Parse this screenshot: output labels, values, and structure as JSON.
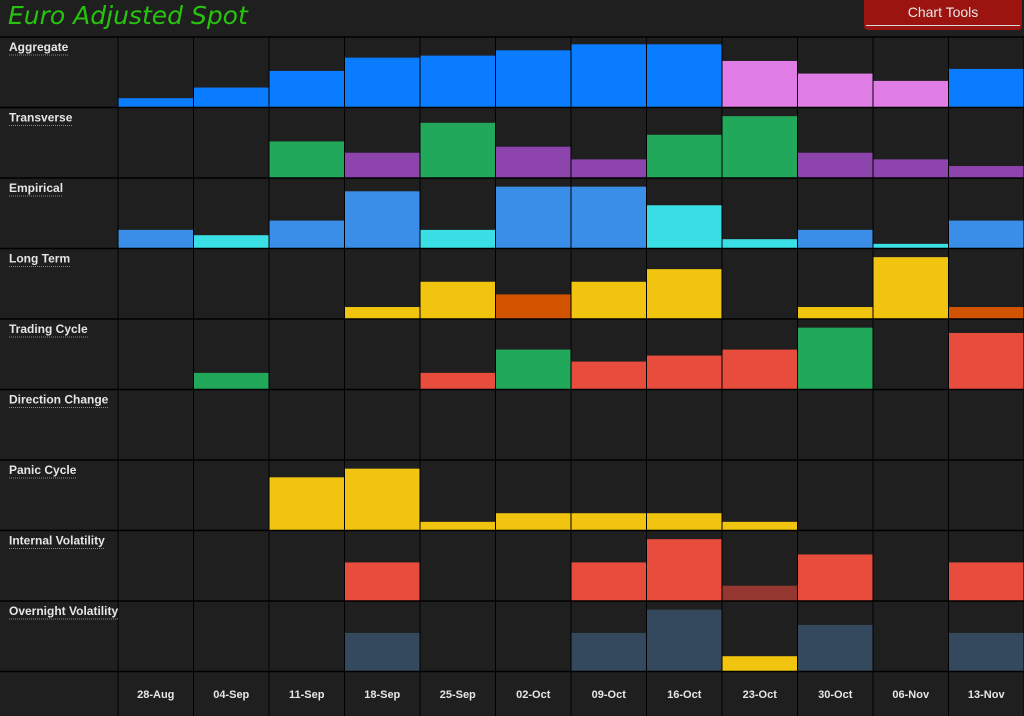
{
  "header": {
    "title": "Euro Adjusted Spot",
    "chart_tools_label": "Chart Tools"
  },
  "colors": {
    "background": "#1f1f1f",
    "grid": "#000000",
    "title": "#27c40e",
    "blue": "#0a7cff",
    "pink": "#e07ce6",
    "green": "#22a85a",
    "purple": "#8d44ad",
    "light_blue": "#3a8ee8",
    "cyan": "#3adfe6",
    "yellow": "#f1c40f",
    "orange": "#d35400",
    "red": "#e74c3c",
    "dark_red": "#943730",
    "slate": "#34495e"
  },
  "chart_data": {
    "type": "bar",
    "categories": [
      "28-Aug",
      "04-Sep",
      "11-Sep",
      "18-Sep",
      "25-Sep",
      "02-Oct",
      "09-Oct",
      "16-Oct",
      "23-Oct",
      "30-Oct",
      "06-Nov",
      "13-Nov"
    ],
    "series": [
      {
        "name": "Aggregate",
        "values": [
          0.14,
          0.3,
          0.55,
          0.75,
          0.78,
          0.86,
          0.95,
          0.95,
          0.7,
          0.51,
          0.4,
          0.58
        ],
        "colors": [
          "blue",
          "blue",
          "blue",
          "blue",
          "blue",
          "blue",
          "blue",
          "blue",
          "pink",
          "pink",
          "pink",
          "blue"
        ]
      },
      {
        "name": "Transverse",
        "values": [
          0,
          0,
          0.55,
          0.38,
          0.83,
          0.47,
          0.28,
          0.65,
          0.93,
          0.38,
          0.28,
          0.18
        ],
        "colors": [
          "green",
          "green",
          "green",
          "purple",
          "green",
          "purple",
          "purple",
          "green",
          "green",
          "purple",
          "purple",
          "purple"
        ]
      },
      {
        "name": "Empirical",
        "values": [
          0.28,
          0.2,
          0.42,
          0.86,
          0.28,
          0.93,
          0.93,
          0.65,
          0.14,
          0.28,
          0.07,
          0.42
        ],
        "colors": [
          "light_blue",
          "cyan",
          "light_blue",
          "light_blue",
          "cyan",
          "light_blue",
          "light_blue",
          "cyan",
          "cyan",
          "light_blue",
          "cyan",
          "light_blue"
        ]
      },
      {
        "name": "Long Term",
        "values": [
          0,
          0,
          0,
          0.18,
          0.56,
          0.37,
          0.56,
          0.75,
          0,
          0.18,
          0.93,
          0.18
        ],
        "colors": [
          "yellow",
          "yellow",
          "yellow",
          "yellow",
          "yellow",
          "orange",
          "yellow",
          "yellow",
          "yellow",
          "yellow",
          "yellow",
          "orange"
        ]
      },
      {
        "name": "Trading Cycle",
        "values": [
          0,
          0.25,
          0,
          0,
          0.25,
          0.6,
          0.42,
          0.51,
          0.6,
          0.93,
          0,
          0.85
        ],
        "colors": [
          "green",
          "green",
          "red",
          "red",
          "red",
          "green",
          "red",
          "red",
          "red",
          "green",
          "red",
          "red"
        ]
      },
      {
        "name": "Direction Change",
        "values": [
          0,
          0,
          0,
          0,
          0,
          0,
          0,
          0,
          0,
          0,
          0,
          0
        ],
        "colors": [
          "blue",
          "blue",
          "blue",
          "blue",
          "blue",
          "blue",
          "blue",
          "blue",
          "blue",
          "blue",
          "blue",
          "blue"
        ]
      },
      {
        "name": "Panic Cycle",
        "values": [
          0,
          0,
          0.8,
          0.93,
          0.13,
          0.26,
          0.26,
          0.26,
          0.13,
          0,
          0,
          0
        ],
        "colors": [
          "yellow",
          "yellow",
          "yellow",
          "yellow",
          "yellow",
          "yellow",
          "yellow",
          "yellow",
          "yellow",
          "yellow",
          "yellow",
          "yellow"
        ]
      },
      {
        "name": "Internal Volatility",
        "values": [
          0,
          0,
          0,
          0.58,
          0,
          0,
          0.58,
          0.93,
          0.23,
          0.7,
          0,
          0.58
        ],
        "colors": [
          "red",
          "red",
          "red",
          "red",
          "red",
          "red",
          "red",
          "red",
          "dark_red",
          "red",
          "red",
          "red"
        ]
      },
      {
        "name": "Overnight Volatility",
        "values": [
          0,
          0,
          0,
          0.58,
          0,
          0,
          0.58,
          0.93,
          0.23,
          0.7,
          0,
          0.58
        ],
        "colors": [
          "slate",
          "slate",
          "slate",
          "slate",
          "slate",
          "slate",
          "slate",
          "slate",
          "yellow",
          "slate",
          "slate",
          "slate"
        ]
      }
    ],
    "ylim": [
      0,
      1
    ],
    "grid": true,
    "legend": "left"
  }
}
